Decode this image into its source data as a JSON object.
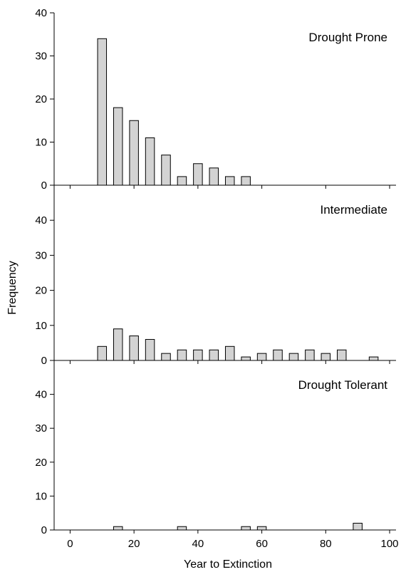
{
  "chart_data": {
    "type": "bar",
    "ylabel": "Frequency",
    "xlabel": "Year to Extinction",
    "xlim": [
      -5,
      102
    ],
    "x_ticks": [
      0,
      20,
      40,
      60,
      80,
      100
    ],
    "panels": [
      {
        "label": "Drought Prone",
        "ylim": [
          0,
          40
        ],
        "y_ticks": [
          0,
          10,
          20,
          30,
          40
        ],
        "x": [
          10,
          15,
          20,
          25,
          30,
          35,
          40,
          45,
          50,
          55
        ],
        "values": [
          34,
          18,
          15,
          11,
          7,
          2,
          5,
          4,
          2,
          2
        ]
      },
      {
        "label": "Intermediate",
        "ylim": [
          0,
          50
        ],
        "y_ticks": [
          0,
          10,
          20,
          30,
          40
        ],
        "x": [
          10,
          15,
          20,
          25,
          30,
          35,
          40,
          45,
          50,
          55,
          60,
          65,
          70,
          75,
          80,
          85,
          90,
          95
        ],
        "values": [
          4,
          9,
          7,
          6,
          2,
          3,
          3,
          3,
          4,
          1,
          2,
          3,
          2,
          3,
          2,
          3,
          0,
          1
        ]
      },
      {
        "label": "Drought Tolerant",
        "ylim": [
          0,
          50
        ],
        "y_ticks": [
          0,
          10,
          20,
          30,
          40
        ],
        "x": [
          15,
          35,
          55,
          60,
          90
        ],
        "values": [
          1,
          1,
          1,
          1,
          2
        ]
      }
    ]
  }
}
